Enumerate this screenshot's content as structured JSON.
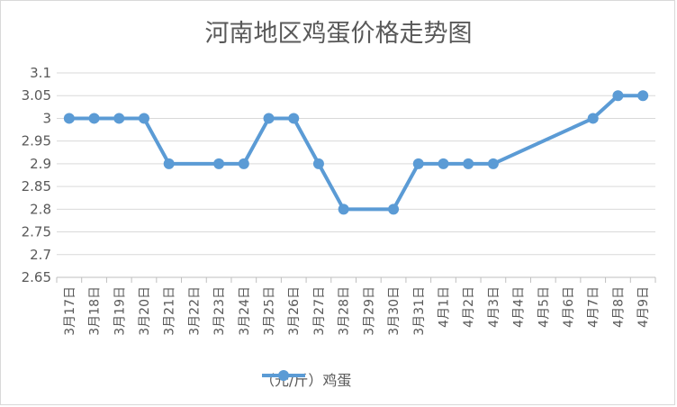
{
  "chart_data": {
    "type": "line",
    "title": "河南地区鸡蛋价格走势图",
    "xlabel": "",
    "ylabel": "",
    "ylim": [
      2.65,
      3.1
    ],
    "yticks": [
      "3.1",
      "3.05",
      "3",
      "2.95",
      "2.9",
      "2.85",
      "2.8",
      "2.75",
      "2.7",
      "2.65"
    ],
    "categories": [
      "3月17日",
      "3月18日",
      "3月19日",
      "3月20日",
      "3月21日",
      "3月22日",
      "3月23日",
      "3月24日",
      "3月25日",
      "3月26日",
      "3月27日",
      "3月28日",
      "3月29日",
      "3月30日",
      "3月31日",
      "4月1日",
      "4月2日",
      "4月3日",
      "4月4日",
      "4月5日",
      "4月6日",
      "4月7日",
      "4月8日",
      "4月9日"
    ],
    "series": [
      {
        "name": "（元/斤）鸡蛋",
        "values": [
          3.0,
          3.0,
          3.0,
          3.0,
          2.9,
          null,
          2.9,
          2.9,
          3.0,
          3.0,
          2.9,
          2.8,
          null,
          2.8,
          2.9,
          2.9,
          2.9,
          2.9,
          null,
          null,
          null,
          3.0,
          3.05,
          3.05
        ]
      }
    ],
    "grid": true,
    "legend_position": "bottom",
    "line_color": "#5b9bd5",
    "gridline_color": "#d9d9d9"
  }
}
